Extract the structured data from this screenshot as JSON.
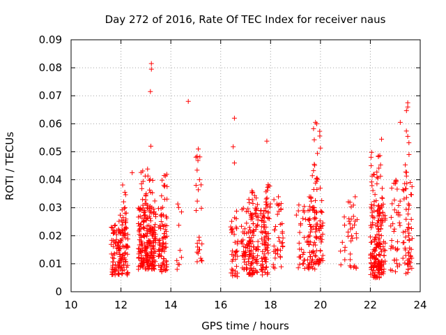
{
  "chart_data": {
    "type": "scatter",
    "title": "Day 272 of 2016, Rate Of TEC Index for receiver naus",
    "xlabel": "GPS time / hours",
    "ylabel": "ROTI / TECUs",
    "xlim": [
      10,
      24
    ],
    "ylim": [
      0,
      0.09
    ],
    "x_ticks": [
      10,
      12,
      14,
      16,
      18,
      20,
      22,
      24
    ],
    "x_tick_labels": [
      "10",
      "12",
      "14",
      "16",
      "18",
      "20",
      "22",
      "24"
    ],
    "y_ticks": [
      0,
      0.01,
      0.02,
      0.03,
      0.04,
      0.05,
      0.06,
      0.07,
      0.08,
      0.09
    ],
    "y_tick_labels": [
      "0",
      "0.01",
      "0.02",
      "0.03",
      "0.04",
      "0.05",
      "0.06",
      "0.07",
      "0.08",
      "0.09"
    ],
    "grid": true,
    "marker": "+",
    "marker_color": "#ff0000",
    "clusters": [
      {
        "x_range": [
          11.6,
          12.3
        ],
        "y_range": [
          0.006,
          0.024
        ],
        "count": 140
      },
      {
        "x_range": [
          11.9,
          12.25
        ],
        "y_range": [
          0.024,
          0.039
        ],
        "count": 18
      },
      {
        "x_range": [
          12.7,
          13.1
        ],
        "y_range": [
          0.008,
          0.03
        ],
        "count": 130
      },
      {
        "x_range": [
          13.1,
          13.4
        ],
        "y_range": [
          0.008,
          0.03
        ],
        "count": 90
      },
      {
        "x_range": [
          12.8,
          13.4
        ],
        "y_range": [
          0.03,
          0.045
        ],
        "count": 26
      },
      {
        "x_range": [
          13.5,
          13.85
        ],
        "y_range": [
          0.007,
          0.03
        ],
        "count": 75
      },
      {
        "x_range": [
          13.6,
          13.85
        ],
        "y_range": [
          0.03,
          0.044
        ],
        "count": 12
      },
      {
        "x_range": [
          14.2,
          14.7
        ],
        "y_range": [
          0.008,
          0.034
        ],
        "count": 10
      },
      {
        "x_range": [
          15.0,
          15.25
        ],
        "y_range": [
          0.01,
          0.05
        ],
        "count": 24
      },
      {
        "x_range": [
          16.4,
          16.7
        ],
        "y_range": [
          0.005,
          0.03
        ],
        "count": 40
      },
      {
        "x_range": [
          16.8,
          17.1
        ],
        "y_range": [
          0.008,
          0.03
        ],
        "count": 40
      },
      {
        "x_range": [
          17.1,
          17.5
        ],
        "y_range": [
          0.006,
          0.036
        ],
        "count": 110
      },
      {
        "x_range": [
          17.6,
          17.95
        ],
        "y_range": [
          0.006,
          0.03
        ],
        "count": 80
      },
      {
        "x_range": [
          17.8,
          18.0
        ],
        "y_range": [
          0.03,
          0.045
        ],
        "count": 15
      },
      {
        "x_range": [
          18.1,
          18.5
        ],
        "y_range": [
          0.008,
          0.034
        ],
        "count": 40
      },
      {
        "x_range": [
          19.0,
          19.5
        ],
        "y_range": [
          0.008,
          0.031
        ],
        "count": 30
      },
      {
        "x_range": [
          19.5,
          20.1
        ],
        "y_range": [
          0.008,
          0.034
        ],
        "count": 110
      },
      {
        "x_range": [
          19.6,
          20.0
        ],
        "y_range": [
          0.034,
          0.06
        ],
        "count": 18
      },
      {
        "x_range": [
          20.8,
          21.0
        ],
        "y_range": [
          0.009,
          0.027
        ],
        "count": 8
      },
      {
        "x_range": [
          21.1,
          21.5
        ],
        "y_range": [
          0.008,
          0.036
        ],
        "count": 30
      },
      {
        "x_range": [
          22.0,
          22.4
        ],
        "y_range": [
          0.005,
          0.033
        ],
        "count": 110
      },
      {
        "x_range": [
          22.0,
          22.3
        ],
        "y_range": [
          0.033,
          0.05
        ],
        "count": 12
      },
      {
        "x_range": [
          22.3,
          22.6
        ],
        "y_range": [
          0.006,
          0.03
        ],
        "count": 70
      },
      {
        "x_range": [
          22.3,
          22.55
        ],
        "y_range": [
          0.03,
          0.055
        ],
        "count": 14
      },
      {
        "x_range": [
          22.8,
          23.2
        ],
        "y_range": [
          0.007,
          0.04
        ],
        "count": 40
      },
      {
        "x_range": [
          23.3,
          23.7
        ],
        "y_range": [
          0.006,
          0.042
        ],
        "count": 60
      },
      {
        "x_range": [
          23.4,
          23.6
        ],
        "y_range": [
          0.042,
          0.068
        ],
        "count": 6
      }
    ],
    "outliers": [
      [
        13.22,
        0.0815
      ],
      [
        13.22,
        0.0795
      ],
      [
        13.18,
        0.0715
      ],
      [
        14.7,
        0.068
      ],
      [
        16.55,
        0.062
      ],
      [
        19.8,
        0.0605
      ],
      [
        19.85,
        0.06
      ],
      [
        23.2,
        0.0605
      ],
      [
        23.5,
        0.0675
      ],
      [
        23.5,
        0.066
      ],
      [
        23.5,
        0.0555
      ],
      [
        13.2,
        0.052
      ],
      [
        17.85,
        0.0538
      ],
      [
        22.45,
        0.0545
      ],
      [
        15.1,
        0.051
      ],
      [
        16.5,
        0.0518
      ],
      [
        23.55,
        0.049
      ],
      [
        12.45,
        0.0425
      ],
      [
        19.35,
        0.0305
      ],
      [
        15.15,
        0.04
      ],
      [
        16.55,
        0.046
      ],
      [
        22.05,
        0.0498
      ]
    ]
  }
}
